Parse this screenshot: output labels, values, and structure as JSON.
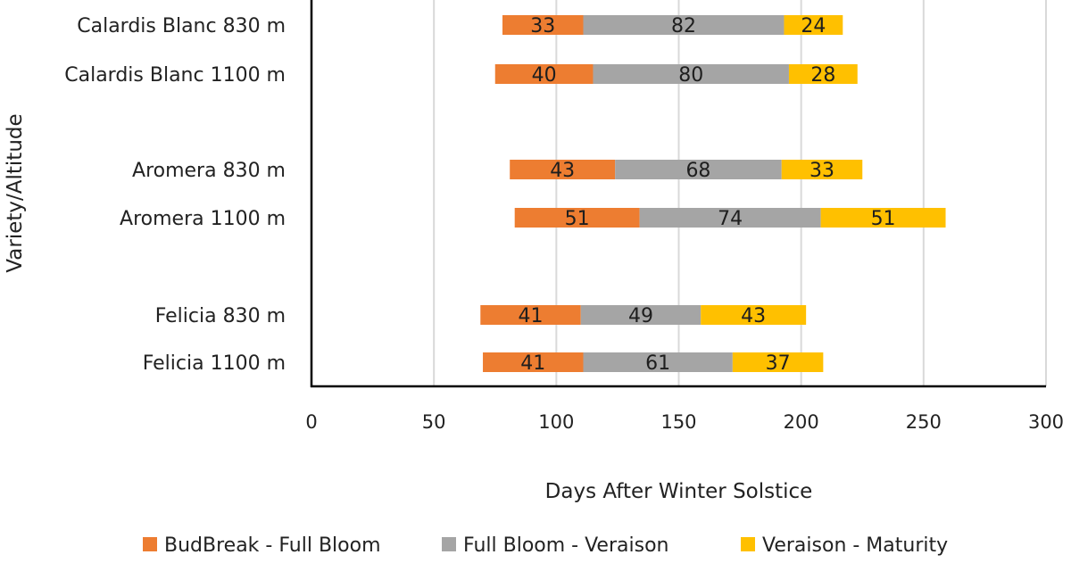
{
  "chart_data": {
    "type": "bar",
    "orientation": "horizontal",
    "stacked": true,
    "xlabel": "Days After Winter Solstice",
    "ylabel": "Variety/Altitude",
    "xlim": [
      0,
      300
    ],
    "xticks": [
      0,
      50,
      100,
      150,
      200,
      250,
      300
    ],
    "grid": true,
    "legend_position": "bottom",
    "categories": [
      "Calardis Blanc 830 m",
      "Calardis Blanc 1100 m",
      "Aromera 830 m",
      "Aromera 1100 m",
      "Felicia 830 m",
      "Felicia 1100 m"
    ],
    "offsets": [
      78,
      75,
      81,
      83,
      69,
      70
    ],
    "series": [
      {
        "name": "BudBreak - Full Bloom",
        "color": "#ED7D31",
        "values": [
          33,
          40,
          43,
          51,
          41,
          41
        ]
      },
      {
        "name": "Full Bloom - Veraison",
        "color": "#A5A5A5",
        "values": [
          82,
          80,
          68,
          74,
          49,
          61
        ]
      },
      {
        "name": "Veraison - Maturity",
        "color": "#FFC000",
        "values": [
          24,
          28,
          33,
          51,
          43,
          37
        ]
      }
    ]
  }
}
